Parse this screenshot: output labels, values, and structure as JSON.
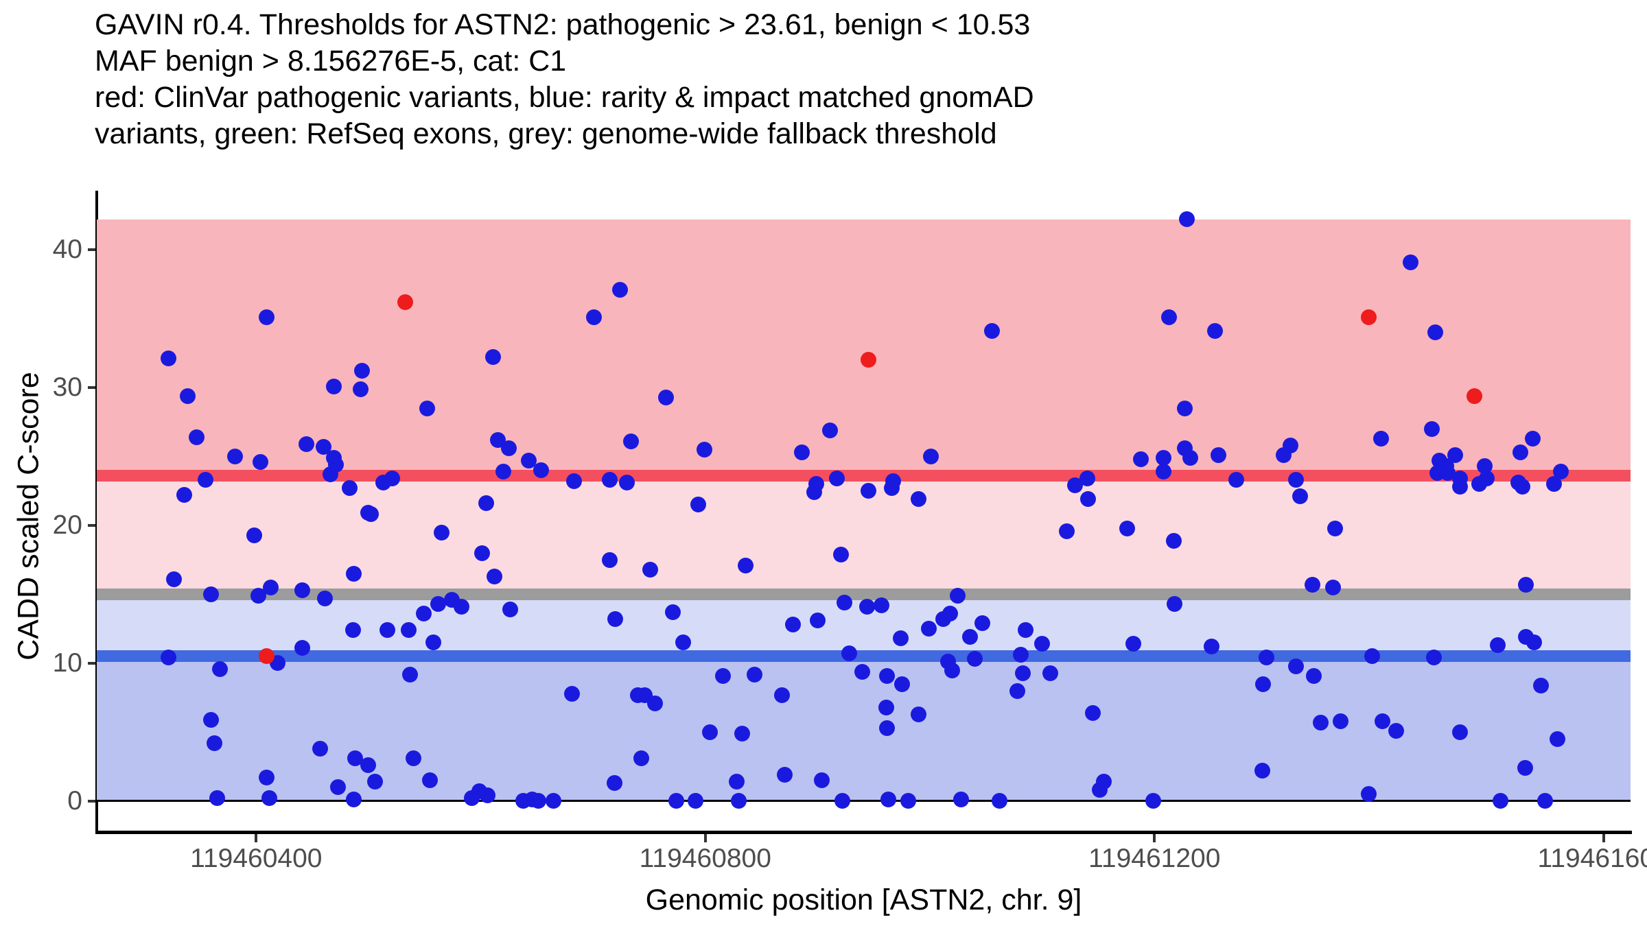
{
  "title": {
    "line1": "GAVIN r0.4. Thresholds for ASTN2: pathogenic > 23.61, benign < 10.53",
    "line2": "MAF benign > 8.156276E-5, cat: C1",
    "line3": "red: ClinVar pathogenic variants, blue: rarity & impact matched gnomAD",
    "line4": "variants, green: RefSeq exons, grey: genome-wide fallback threshold"
  },
  "chart_data": {
    "type": "scatter",
    "title": "GAVIN r0.4. Thresholds for ASTN2: pathogenic > 23.61, benign < 10.53 | MAF benign > 8.156276E-5, cat: C1",
    "xlabel": "Genomic position [ASTN2, chr. 9]",
    "ylabel": "CADD scaled C-score",
    "gene": "ASTN2",
    "chromosome": "9",
    "category": "C1",
    "pathogenic_threshold": 23.61,
    "benign_threshold": 10.53,
    "genome_wide_fallback_threshold": 15,
    "maf_benign": "8.156276E-5",
    "xlim": [
      119460258,
      119461624
    ],
    "ylim": [
      -2.14,
      42.19
    ],
    "grid": false,
    "legend_position": "none",
    "x_ticks": [
      {
        "value": 119460400,
        "label": "119460400"
      },
      {
        "value": 119460800,
        "label": "119460800"
      },
      {
        "value": 119461200,
        "label": "119461200"
      },
      {
        "value": 119461600,
        "label": "119461600"
      }
    ],
    "y_ticks": [
      {
        "value": 0,
        "label": "0"
      },
      {
        "value": 10,
        "label": "10"
      },
      {
        "value": 20,
        "label": "20"
      },
      {
        "value": 30,
        "label": "30"
      },
      {
        "value": 40,
        "label": "40"
      }
    ],
    "bands": [
      {
        "name": "pathogenic-zone",
        "from": 23.61,
        "to": 42.19,
        "color": "#f9b5bc"
      },
      {
        "name": "likely-pathogenic-zone",
        "from": 15,
        "to": 23.61,
        "color": "#fcdbe0"
      },
      {
        "name": "likely-benign-zone",
        "from": 10.53,
        "to": 15,
        "color": "#d6dcf8"
      },
      {
        "name": "benign-zone",
        "from": 0,
        "to": 10.53,
        "color": "#bac2f2"
      }
    ],
    "threshold_lines": [
      {
        "name": "pathogenic-threshold-line",
        "value": 23.61,
        "color": "#f44f5e",
        "thickness": 17
      },
      {
        "name": "genome-wide-fallback-line",
        "value": 15,
        "color": "#9c9c9c",
        "thickness": 17
      },
      {
        "name": "benign-threshold-line",
        "value": 10.53,
        "color": "#4169e0",
        "thickness": 17
      },
      {
        "name": "zero-baseline",
        "value": 0,
        "color": "#000000",
        "thickness": 3
      }
    ],
    "series": [
      {
        "name": "rarity & impact matched gnomAD variants",
        "color": "#1a1adf",
        "marker_diameter": 23,
        "points": [
          [
            119460409,
            35.1
          ],
          [
            119460322,
            32.1
          ],
          [
            119460339,
            29.4
          ],
          [
            119460347,
            26.4
          ],
          [
            119460381,
            25.0
          ],
          [
            119460404,
            24.6
          ],
          [
            119460445,
            25.9
          ],
          [
            119460460,
            25.7
          ],
          [
            119460469,
            24.9
          ],
          [
            119460471,
            24.4
          ],
          [
            119460466,
            23.7
          ],
          [
            119460469,
            30.1
          ],
          [
            119460494,
            31.2
          ],
          [
            119460493,
            29.9
          ],
          [
            119460552,
            28.5
          ],
          [
            119460611,
            32.2
          ],
          [
            119460355,
            23.3
          ],
          [
            119460336,
            22.2
          ],
          [
            119460483,
            22.7
          ],
          [
            119460513,
            23.1
          ],
          [
            119460521,
            23.4
          ],
          [
            119460500,
            20.9
          ],
          [
            119460605,
            21.6
          ],
          [
            119460724,
            37.1
          ],
          [
            119460701,
            35.1
          ],
          [
            119460765,
            29.3
          ],
          [
            119460911,
            26.9
          ],
          [
            119460734,
            26.1
          ],
          [
            119460799,
            25.5
          ],
          [
            119460886,
            25.3
          ],
          [
            119460615,
            26.2
          ],
          [
            119460625,
            25.6
          ],
          [
            119460643,
            24.7
          ],
          [
            119460654,
            24.0
          ],
          [
            119460620,
            23.9
          ],
          [
            119460683,
            23.2
          ],
          [
            119460715,
            23.3
          ],
          [
            119460730,
            23.1
          ],
          [
            119460794,
            21.5
          ],
          [
            119460899,
            23.0
          ],
          [
            119460897,
            22.4
          ],
          [
            119460917,
            23.4
          ],
          [
            119460945,
            22.5
          ],
          [
            119460967,
            23.2
          ],
          [
            119460966,
            22.7
          ],
          [
            119461229,
            42.2
          ],
          [
            119461213,
            35.1
          ],
          [
            119461254,
            34.1
          ],
          [
            119461055,
            34.1
          ],
          [
            119461227,
            28.5
          ],
          [
            119461001,
            25.0
          ],
          [
            119461188,
            24.8
          ],
          [
            119461208,
            24.9
          ],
          [
            119461227,
            25.6
          ],
          [
            119461232,
            24.9
          ],
          [
            119461257,
            25.1
          ],
          [
            119461321,
            25.8
          ],
          [
            119461315,
            25.1
          ],
          [
            119461208,
            23.9
          ],
          [
            119461140,
            23.4
          ],
          [
            119461129,
            22.9
          ],
          [
            119461273,
            23.3
          ],
          [
            119460990,
            21.9
          ],
          [
            119461141,
            21.9
          ],
          [
            119461428,
            39.1
          ],
          [
            119461450,
            34.0
          ],
          [
            119461447,
            27.0
          ],
          [
            119461402,
            26.3
          ],
          [
            119461537,
            26.3
          ],
          [
            119461526,
            25.3
          ],
          [
            119461468,
            25.1
          ],
          [
            119461454,
            24.7
          ],
          [
            119461460,
            24.3
          ],
          [
            119461452,
            23.8
          ],
          [
            119461461,
            23.8
          ],
          [
            119461494,
            24.3
          ],
          [
            119461496,
            23.4
          ],
          [
            119461472,
            23.4
          ],
          [
            119461472,
            22.8
          ],
          [
            119461489,
            23.0
          ],
          [
            119461562,
            23.9
          ],
          [
            119461556,
            23.0
          ],
          [
            119461524,
            23.1
          ],
          [
            119461528,
            22.8
          ],
          [
            119461326,
            23.3
          ],
          [
            119461330,
            22.1
          ],
          [
            119460502,
            20.8
          ],
          [
            119460398,
            19.3
          ],
          [
            119460565,
            19.5
          ],
          [
            119460601,
            18.0
          ],
          [
            119460612,
            16.3
          ],
          [
            119460487,
            16.5
          ],
          [
            119460327,
            16.1
          ],
          [
            119460413,
            15.5
          ],
          [
            119460441,
            15.3
          ],
          [
            119460360,
            15.0
          ],
          [
            119460402,
            14.9
          ],
          [
            119460461,
            14.7
          ],
          [
            119460486,
            12.4
          ],
          [
            119460517,
            12.4
          ],
          [
            119460549,
            13.6
          ],
          [
            119460562,
            14.3
          ],
          [
            119460574,
            14.6
          ],
          [
            119460583,
            14.1
          ],
          [
            119460536,
            12.4
          ],
          [
            119460558,
            11.5
          ],
          [
            119460322,
            10.4
          ],
          [
            119460368,
            9.6
          ],
          [
            119460419,
            10.0
          ],
          [
            119460441,
            11.1
          ],
          [
            119460537,
            9.2
          ],
          [
            119460360,
            5.9
          ],
          [
            119460363,
            4.2
          ],
          [
            119460457,
            3.8
          ],
          [
            119460488,
            3.1
          ],
          [
            119460500,
            2.6
          ],
          [
            119460506,
            1.4
          ],
          [
            119460540,
            3.1
          ],
          [
            119460555,
            1.5
          ],
          [
            119460409,
            1.7
          ],
          [
            119460365,
            0.2
          ],
          [
            119460412,
            0.2
          ],
          [
            119460473,
            1.0
          ],
          [
            119460487,
            0.1
          ],
          [
            119460592,
            0.2
          ],
          [
            119460599,
            0.7
          ],
          [
            119460606,
            0.4
          ],
          [
            119460715,
            17.5
          ],
          [
            119460751,
            16.8
          ],
          [
            119460836,
            17.1
          ],
          [
            119460921,
            17.9
          ],
          [
            119460626,
            13.9
          ],
          [
            119460720,
            13.2
          ],
          [
            119460771,
            13.7
          ],
          [
            119460780,
            11.5
          ],
          [
            119460878,
            12.8
          ],
          [
            119460900,
            13.1
          ],
          [
            119460924,
            14.4
          ],
          [
            119460944,
            14.1
          ],
          [
            119460957,
            14.2
          ],
          [
            119460928,
            10.7
          ],
          [
            119460940,
            9.4
          ],
          [
            119460816,
            9.1
          ],
          [
            119460844,
            9.2
          ],
          [
            119460681,
            7.8
          ],
          [
            119460740,
            7.7
          ],
          [
            119460746,
            7.7
          ],
          [
            119460755,
            7.1
          ],
          [
            119460868,
            7.7
          ],
          [
            119460804,
            5.0
          ],
          [
            119460833,
            4.9
          ],
          [
            119460961,
            6.8
          ],
          [
            119460962,
            5.3
          ],
          [
            119460743,
            3.1
          ],
          [
            119460719,
            1.3
          ],
          [
            119460828,
            1.4
          ],
          [
            119460871,
            1.9
          ],
          [
            119460904,
            1.5
          ],
          [
            119460638,
            0.0
          ],
          [
            119460646,
            0.1
          ],
          [
            119460651,
            0.0
          ],
          [
            119460665,
            0.0
          ],
          [
            119460774,
            0.0
          ],
          [
            119460791,
            0.0
          ],
          [
            119460830,
            0.0
          ],
          [
            119460922,
            0.0
          ],
          [
            119461122,
            19.6
          ],
          [
            119461176,
            19.8
          ],
          [
            119461217,
            18.9
          ],
          [
            119461025,
            14.9
          ],
          [
            119461218,
            14.3
          ],
          [
            119461018,
            13.6
          ],
          [
            119461012,
            13.2
          ],
          [
            119460999,
            12.5
          ],
          [
            119460974,
            11.8
          ],
          [
            119461047,
            12.9
          ],
          [
            119461036,
            11.9
          ],
          [
            119461085,
            12.4
          ],
          [
            119461100,
            11.4
          ],
          [
            119461181,
            11.4
          ],
          [
            119461251,
            11.2
          ],
          [
            119461081,
            10.6
          ],
          [
            119461040,
            10.3
          ],
          [
            119461016,
            10.1
          ],
          [
            119461020,
            9.5
          ],
          [
            119461300,
            10.4
          ],
          [
            119460962,
            9.1
          ],
          [
            119460975,
            8.5
          ],
          [
            119461083,
            9.3
          ],
          [
            119461107,
            9.3
          ],
          [
            119461078,
            8.0
          ],
          [
            119461145,
            6.4
          ],
          [
            119460990,
            6.3
          ],
          [
            119461297,
            8.5
          ],
          [
            119461296,
            2.2
          ],
          [
            119461155,
            1.4
          ],
          [
            119461151,
            0.8
          ],
          [
            119460981,
            0.0
          ],
          [
            119461028,
            0.1
          ],
          [
            119461062,
            0.0
          ],
          [
            119461199,
            0.0
          ],
          [
            119460963,
            0.1
          ],
          [
            119461361,
            19.8
          ],
          [
            119461341,
            15.7
          ],
          [
            119461359,
            15.5
          ],
          [
            119461531,
            15.7
          ],
          [
            119461531,
            11.9
          ],
          [
            119461538,
            11.5
          ],
          [
            119461506,
            11.3
          ],
          [
            119461394,
            10.5
          ],
          [
            119461449,
            10.4
          ],
          [
            119461326,
            9.8
          ],
          [
            119461342,
            9.1
          ],
          [
            119461544,
            8.4
          ],
          [
            119461348,
            5.7
          ],
          [
            119461366,
            5.8
          ],
          [
            119461403,
            5.8
          ],
          [
            119461415,
            5.1
          ],
          [
            119461472,
            5.0
          ],
          [
            119461559,
            4.5
          ],
          [
            119461530,
            2.4
          ],
          [
            119461391,
            0.5
          ],
          [
            119461508,
            0.0
          ],
          [
            119461548,
            0.0
          ]
        ]
      },
      {
        "name": "ClinVar pathogenic variants",
        "color": "#ee1c1c",
        "marker_diameter": 23,
        "points": [
          [
            119460533,
            36.2
          ],
          [
            119460945,
            32.0
          ],
          [
            119461391,
            35.1
          ],
          [
            119461485,
            29.4
          ],
          [
            119460409,
            10.5
          ]
        ]
      }
    ]
  },
  "colors": {
    "background": "#ffffff",
    "axis": "#000000",
    "tick_label": "#4d4d4d",
    "pathogenic_band": "#f9b5bc",
    "likely_pathogenic_band": "#fcdbe0",
    "likely_benign_band": "#d6dcf8",
    "benign_band": "#bac2f2",
    "pathogenic_line": "#f44f5e",
    "fallback_line": "#9c9c9c",
    "benign_line": "#4169e0",
    "clinvar_dot": "#ee1c1c",
    "gnomad_dot": "#1a1adf"
  }
}
